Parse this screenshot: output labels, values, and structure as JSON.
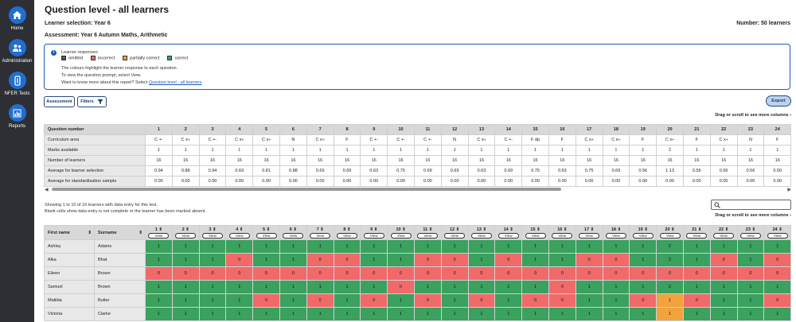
{
  "sidebar": {
    "items": [
      {
        "label": "Home",
        "icon": "home-icon"
      },
      {
        "label": "Administration",
        "icon": "users-icon"
      },
      {
        "label": "NFER Tests",
        "icon": "test-icon"
      },
      {
        "label": "Reports",
        "icon": "chart-icon"
      }
    ]
  },
  "header": {
    "title": "Question level - all learners",
    "learner_selection": "Learner selection: Year 6",
    "assessment": "Assessment: Year 6 Autumn Maths, Arithmetic",
    "number": "Number: 50 learners"
  },
  "info": {
    "heading": "Learner responses",
    "legend": [
      {
        "label": "omitted",
        "color": "#555555"
      },
      {
        "label": "incorrect",
        "color": "#f06a6a"
      },
      {
        "label": "partially correct",
        "color": "#f2a33c"
      },
      {
        "label": "correct",
        "color": "#3aa15e"
      }
    ],
    "line1": "The colours highlight the learner response to each question.",
    "line2": "To view the question prompt, select View.",
    "line3_prefix": "Want to know more about this report? Select ",
    "line3_link": "Question level - all learners"
  },
  "toolbar": {
    "assessment_label": "Assessment",
    "filters_label": "Filters",
    "export_label": "Export"
  },
  "drag_hint": "Drag or scroll to see more columns",
  "question_table": {
    "row_labels": [
      "Question number",
      "Curriculum area",
      "Marks available",
      "Number of learners",
      "Average for learner selection",
      "Average for standardisation sample"
    ],
    "questions": [
      "1",
      "2",
      "3",
      "4",
      "5",
      "6",
      "7",
      "8",
      "9",
      "10",
      "11",
      "12",
      "13",
      "14",
      "15",
      "16",
      "17",
      "18",
      "19",
      "20",
      "21",
      "22",
      "23",
      "24"
    ],
    "curriculum": [
      "C +-",
      "C x÷",
      "C +-",
      "C x÷",
      "C x÷",
      "N",
      "C x÷",
      "F",
      "C +-",
      "C +-",
      "C +-",
      "N",
      "C x÷",
      "C +-",
      "F dp",
      "F",
      "C x÷",
      "C x÷",
      "F",
      "C x÷",
      "F",
      "C x÷",
      "N",
      "F"
    ],
    "marks": [
      "1",
      "1",
      "1",
      "1",
      "1",
      "1",
      "1",
      "1",
      "1",
      "1",
      "1",
      "1",
      "1",
      "1",
      "1",
      "1",
      "1",
      "1",
      "1",
      "2",
      "1",
      "1",
      "1",
      "1"
    ],
    "learners": [
      "16",
      "16",
      "16",
      "16",
      "16",
      "16",
      "16",
      "16",
      "16",
      "16",
      "16",
      "16",
      "16",
      "16",
      "16",
      "16",
      "16",
      "16",
      "16",
      "16",
      "16",
      "16",
      "16",
      "16"
    ],
    "avg_selection": [
      "0.94",
      "0.88",
      "0.94",
      "0.69",
      "0.81",
      "0.88",
      "0.69",
      "0.69",
      "0.63",
      "0.75",
      "0.69",
      "0.69",
      "0.63",
      "0.69",
      "0.75",
      "0.63",
      "0.75",
      "0.69",
      "0.56",
      "1.13",
      "0.56",
      "0.56",
      "0.56",
      "0.50"
    ],
    "avg_sample": [
      "0.00",
      "0.00",
      "0.00",
      "0.00",
      "0.00",
      "0.00",
      "0.00",
      "0.00",
      "0.00",
      "0.00",
      "0.00",
      "0.00",
      "0.00",
      "0.00",
      "0.00",
      "0.00",
      "0.00",
      "0.00",
      "0.00",
      "0.00",
      "0.00",
      "0.00",
      "0.00",
      "0.00"
    ]
  },
  "showing": {
    "line1": "Showing  1 to 10 of 16 learners with data entry for this test.",
    "line2": "Blank cells show data entry is not complete or the learner has been marked absent."
  },
  "learner_table": {
    "first_name_header": "First name",
    "surname_header": "Surname",
    "view_label": "View",
    "rows": [
      {
        "first": "Ashley",
        "last": "Adams",
        "scores": [
          "1",
          "1",
          "1",
          "1",
          "1",
          "1",
          "1",
          "1",
          "1",
          "1",
          "1",
          "1",
          "1",
          "1",
          "1",
          "1",
          "1",
          "1",
          "1",
          "2",
          "1",
          "1",
          "1",
          "1"
        ]
      },
      {
        "first": "Alka",
        "last": "Bhat",
        "scores": [
          "1",
          "1",
          "1",
          "0",
          "1",
          "1",
          "0",
          "0",
          "1",
          "1",
          "0",
          "0",
          "1",
          "0",
          "1",
          "1",
          "0",
          "0",
          "1",
          "2",
          "1",
          "0",
          "1",
          "0"
        ]
      },
      {
        "first": "Eileen",
        "last": "Brown",
        "scores": [
          "0",
          "0",
          "0",
          "0",
          "0",
          "0",
          "0",
          "0",
          "0",
          "0",
          "0",
          "0",
          "0",
          "0",
          "0",
          "0",
          "0",
          "0",
          "0",
          "0",
          "0",
          "0",
          "0",
          "0"
        ]
      },
      {
        "first": "Samuel",
        "last": "Brown",
        "scores": [
          "1",
          "1",
          "1",
          "1",
          "1",
          "1",
          "1",
          "1",
          "1",
          "0",
          "1",
          "1",
          "1",
          "1",
          "1",
          "0",
          "1",
          "1",
          "1",
          "2",
          "1",
          "1",
          "1",
          "1"
        ]
      },
      {
        "first": "Matilda",
        "last": "Butler",
        "scores": [
          "1",
          "1",
          "1",
          "1",
          "0",
          "1",
          "0",
          "1",
          "0",
          "1",
          "0",
          "1",
          "0",
          "1",
          "0",
          "0",
          "1",
          "1",
          "0",
          "1",
          "0",
          "1",
          "1",
          "0"
        ]
      },
      {
        "first": "Victoria",
        "last": "Clarke",
        "scores": [
          "1",
          "1",
          "1",
          "1",
          "1",
          "1",
          "1",
          "1",
          "1",
          "1",
          "1",
          "1",
          "1",
          "1",
          "1",
          "1",
          "1",
          "1",
          "1",
          "1",
          "1",
          "1",
          "1",
          "1"
        ]
      }
    ],
    "partial": [
      [
        4,
        19
      ],
      [
        5,
        19
      ]
    ]
  }
}
